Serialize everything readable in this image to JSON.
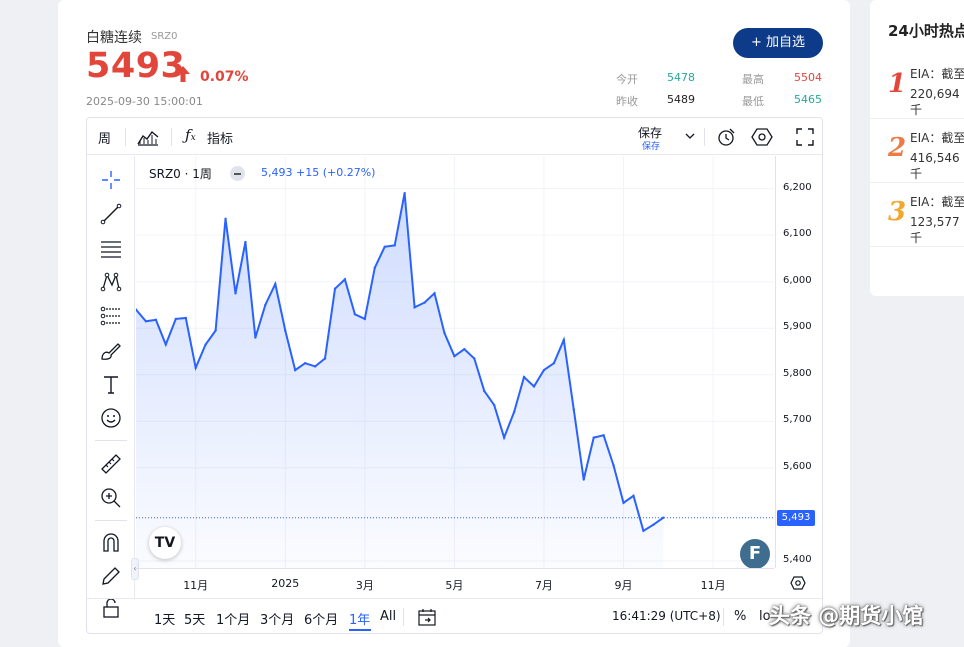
{
  "quote": {
    "name": "白糖连续",
    "code": "SRZ0",
    "price": "5493",
    "change_pct": "0.07%",
    "timestamp": "2025-09-30 15:00:01",
    "open_label": "今开",
    "open": "5478",
    "high_label": "最高",
    "high": "5504",
    "prev_close_label": "昨收",
    "prev_close": "5489",
    "low_label": "最低",
    "low": "5465",
    "add_button": "+ 加自选"
  },
  "colors": {
    "up": "#e2463b",
    "down": "#26a69a",
    "line": "#2962ff",
    "brand": "#0d3b8a"
  },
  "toolbar": {
    "interval": "周",
    "indicators": "指标",
    "save": "保存",
    "save_sub": "保存"
  },
  "legend": {
    "symbol": "SRZ0 · 1周",
    "values": "5,493  +15 (+0.27%)"
  },
  "ranges": [
    "1天",
    "5天",
    "1个月",
    "3个月",
    "6个月",
    "1年",
    "All"
  ],
  "active_range": "1年",
  "clock": "16:41:29 (UTC+8)",
  "percent_btn": "%",
  "log_btn": "lo",
  "last_price_label": "5,493",
  "sidebar": {
    "title": "24小时热点",
    "items": [
      {
        "num": "1",
        "color": "#e2463b",
        "line1": "EIA：截至",
        "line2": "220,694千"
      },
      {
        "num": "2",
        "color": "#ef7a45",
        "line1": "EIA：截至",
        "line2": "416,546千"
      },
      {
        "num": "3",
        "color": "#f0a830",
        "line1": "EIA：截至",
        "line2": "123,577千"
      }
    ]
  },
  "watermark": "头条 @期货小馆",
  "chart_data": {
    "type": "area",
    "series": [
      {
        "values": [
          5940,
          5915,
          5918,
          5865,
          5920,
          5922,
          5815,
          5865,
          5895,
          6135,
          5975,
          6085,
          5880,
          5950,
          5995,
          5895,
          5810,
          5825,
          5818,
          5835,
          5985,
          6005,
          5930,
          5920,
          6030,
          6075,
          6078,
          6190,
          5945,
          5955,
          5975,
          5890,
          5840,
          5855,
          5835,
          5765,
          5735,
          5665,
          5720,
          5795,
          5775,
          5810,
          5825,
          5875,
          5725,
          5575,
          5665,
          5670,
          5605,
          5525,
          5540,
          5465,
          5478,
          5493
        ]
      }
    ],
    "x_ticks": [
      {
        "label": "11月",
        "index": 6
      },
      {
        "label": "2025",
        "index": 15
      },
      {
        "label": "3月",
        "index": 23
      },
      {
        "label": "5月",
        "index": 32
      },
      {
        "label": "7月",
        "index": 41
      },
      {
        "label": "9月",
        "index": 49
      },
      {
        "label": "11月",
        "index": 58
      }
    ],
    "y_ticks": [
      "6,200",
      "6,100",
      "6,000",
      "5,900",
      "5,800",
      "5,700",
      "5,600",
      "5,400"
    ],
    "ylim": [
      5385,
      6270
    ],
    "last_value": 5493
  }
}
